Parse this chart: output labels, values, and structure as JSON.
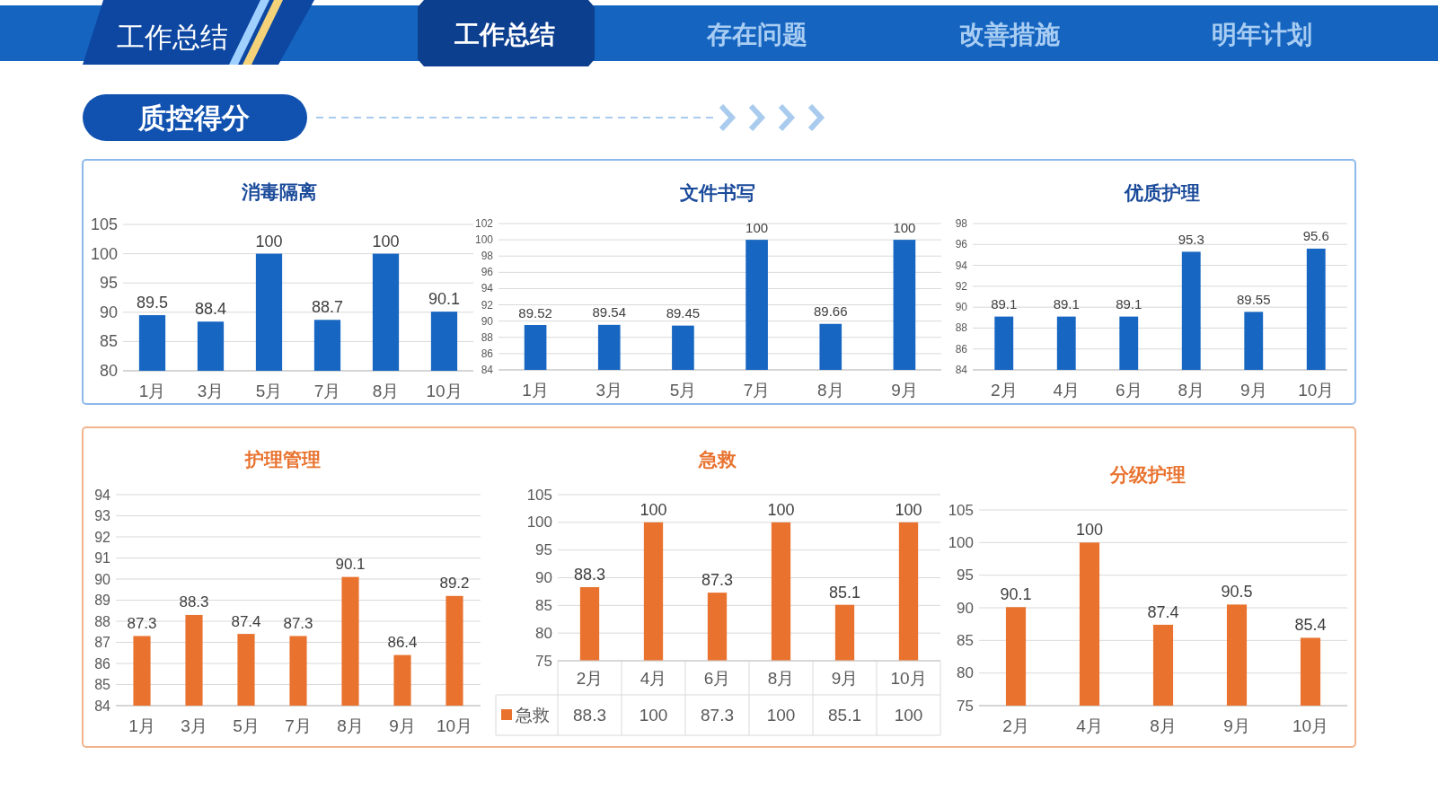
{
  "chart_data": [
    {
      "type": "other",
      "annotations": [
        "工作总结",
        "工作总结",
        "存在问题",
        "改善措施",
        "明年计划",
        "质控得分"
      ]
    },
    {
      "type": "bar",
      "title": "消毒隔离",
      "categories": [
        "1月",
        "3月",
        "5月",
        "7月",
        "8月",
        "10月"
      ],
      "values": [
        89.5,
        88.4,
        100,
        88.7,
        100,
        90.1
      ],
      "color": "#1766c2",
      "ylim": [
        80,
        105
      ],
      "yticks": [
        80,
        85,
        90,
        95,
        100,
        105
      ],
      "grid": "y",
      "data_labels": true
    },
    {
      "type": "bar",
      "title": "文件书写",
      "categories": [
        "1月",
        "3月",
        "5月",
        "7月",
        "8月",
        "9月"
      ],
      "values": [
        89.52,
        89.54,
        89.45,
        100,
        89.66,
        100
      ],
      "color": "#1766c2",
      "ylim": [
        84,
        102
      ],
      "yticks": [
        84,
        86,
        88,
        90,
        92,
        94,
        96,
        98,
        100,
        102
      ],
      "grid": "y",
      "data_labels": true
    },
    {
      "type": "bar",
      "title": "优质护理",
      "categories": [
        "2月",
        "4月",
        "6月",
        "8月",
        "9月",
        "10月"
      ],
      "values": [
        89.1,
        89.1,
        89.1,
        95.3,
        89.55,
        95.6
      ],
      "color": "#1766c2",
      "ylim": [
        84,
        98
      ],
      "yticks": [
        84,
        86,
        88,
        90,
        92,
        94,
        96,
        98
      ],
      "grid": "y",
      "data_labels": true
    },
    {
      "type": "bar",
      "title": "护理管理",
      "categories": [
        "1月",
        "3月",
        "5月",
        "7月",
        "8月",
        "9月",
        "10月"
      ],
      "values": [
        87.3,
        88.3,
        87.4,
        87.3,
        90.1,
        86.4,
        89.2
      ],
      "color": "#e8722e",
      "ylim": [
        84,
        94
      ],
      "yticks": [
        84,
        85,
        86,
        87,
        88,
        89,
        90,
        91,
        92,
        93,
        94
      ],
      "grid": "y",
      "data_labels": true
    },
    {
      "type": "bar",
      "title": "急救",
      "categories": [
        "2月",
        "4月",
        "6月",
        "8月",
        "9月",
        "10月"
      ],
      "series": [
        {
          "name": "急救",
          "color": "#e8722e",
          "values": [
            88.3,
            100,
            87.3,
            100,
            85.1,
            100
          ],
          "value_labels": [
            "88.3",
            "100",
            "87.3",
            "100",
            "85.1",
            "100"
          ]
        }
      ],
      "ylim": [
        75,
        105
      ],
      "yticks": [
        75,
        80,
        85,
        90,
        95,
        100,
        105
      ],
      "grid": "y",
      "data_labels": true,
      "legend": "bottom",
      "annotations": [
        "88.3",
        "100",
        "87.3",
        "100",
        "85.1",
        "100"
      ]
    },
    {
      "type": "bar",
      "title": "分级护理",
      "categories": [
        "2月",
        "4月",
        "8月",
        "9月",
        "10月"
      ],
      "values": [
        90.1,
        100,
        87.4,
        90.5,
        85.4
      ],
      "color": "#e8722e",
      "ylim": [
        75,
        105
      ],
      "yticks": [
        75,
        80,
        85,
        90,
        95,
        100,
        105
      ],
      "grid": "y",
      "data_labels": true
    }
  ]
}
